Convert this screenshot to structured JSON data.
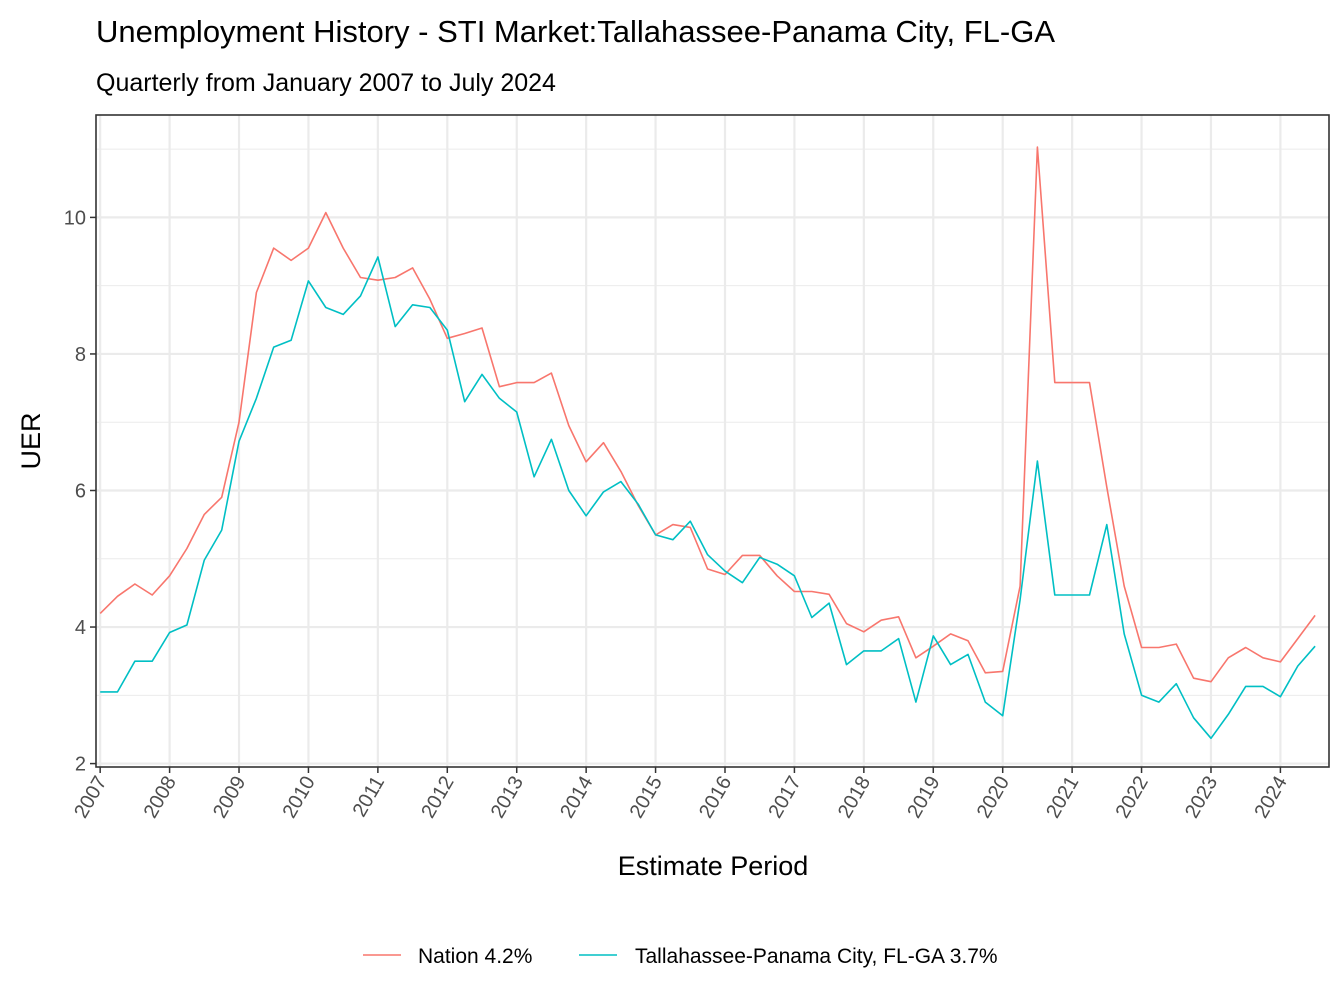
{
  "chart_data": {
    "type": "line",
    "title": "Unemployment History - STI Market:Tallahassee-Panama City, FL-GA",
    "subtitle": "Quarterly from January 2007 to July 2024",
    "xlabel": "Estimate Period",
    "ylabel": "UER",
    "xlim": [
      2006.94,
      2024.7
    ],
    "ylim": [
      1.95,
      11.5
    ],
    "y_ticks": [
      2,
      4,
      6,
      8,
      10
    ],
    "y_tick_labels": [
      "2",
      "4",
      "6",
      "8",
      "10"
    ],
    "x_ticks": [
      2007,
      2008,
      2009,
      2010,
      2011,
      2012,
      2013,
      2014,
      2015,
      2016,
      2017,
      2018,
      2019,
      2020,
      2021,
      2022,
      2023,
      2024
    ],
    "x_tick_labels": [
      "2007",
      "2008",
      "2009",
      "2010",
      "2011",
      "2012",
      "2013",
      "2014",
      "2015",
      "2016",
      "2017",
      "2018",
      "2019",
      "2020",
      "2021",
      "2022",
      "2023",
      "2024"
    ],
    "grid": true,
    "legend_position": "bottom",
    "x": [
      2007.0,
      2007.25,
      2007.5,
      2007.75,
      2008.0,
      2008.25,
      2008.5,
      2008.75,
      2009.0,
      2009.25,
      2009.5,
      2009.75,
      2010.0,
      2010.25,
      2010.5,
      2010.75,
      2011.0,
      2011.25,
      2011.5,
      2011.75,
      2012.0,
      2012.25,
      2012.5,
      2012.75,
      2013.0,
      2013.25,
      2013.5,
      2013.75,
      2014.0,
      2014.25,
      2014.5,
      2014.75,
      2015.0,
      2015.25,
      2015.5,
      2015.75,
      2016.0,
      2016.25,
      2016.5,
      2016.75,
      2017.0,
      2017.25,
      2017.5,
      2017.75,
      2018.0,
      2018.25,
      2018.5,
      2018.75,
      2019.0,
      2019.25,
      2019.5,
      2019.75,
      2020.0,
      2020.25,
      2020.5,
      2020.75,
      2021.0,
      2021.25,
      2021.5,
      2021.75,
      2022.0,
      2022.25,
      2022.5,
      2022.75,
      2023.0,
      2023.25,
      2023.5,
      2023.75,
      2024.0,
      2024.25,
      2024.5
    ],
    "series": [
      {
        "name": "Nation 4.2%",
        "color": "#F8766D",
        "values": [
          4.2,
          4.45,
          4.63,
          4.47,
          4.75,
          5.15,
          5.65,
          5.9,
          7.0,
          8.9,
          9.55,
          9.37,
          9.55,
          10.07,
          9.55,
          9.12,
          9.08,
          9.12,
          9.26,
          8.8,
          8.23,
          8.3,
          8.38,
          7.52,
          7.58,
          7.58,
          7.72,
          6.95,
          6.42,
          6.7,
          6.28,
          5.78,
          5.35,
          5.5,
          5.46,
          4.85,
          4.77,
          5.05,
          5.05,
          4.75,
          4.52,
          4.52,
          4.48,
          4.05,
          3.93,
          4.1,
          4.15,
          3.55,
          3.72,
          3.9,
          3.8,
          3.33,
          3.35,
          4.6,
          11.03,
          7.58,
          7.58,
          7.58,
          6.05,
          4.6,
          3.7,
          3.7,
          3.75,
          3.25,
          3.2,
          3.55,
          3.7,
          3.55,
          3.49,
          3.83,
          4.17
        ]
      },
      {
        "name": "Tallahassee-Panama City, FL-GA 3.7%",
        "color": "#00BFC4",
        "values": [
          3.05,
          3.05,
          3.5,
          3.5,
          3.92,
          4.03,
          4.98,
          5.42,
          6.72,
          7.35,
          8.1,
          8.2,
          9.07,
          8.68,
          8.58,
          8.85,
          9.42,
          8.4,
          8.72,
          8.68,
          8.35,
          7.3,
          7.7,
          7.35,
          7.15,
          6.2,
          6.75,
          6.0,
          5.63,
          5.98,
          6.13,
          5.8,
          5.35,
          5.28,
          5.55,
          5.06,
          4.82,
          4.65,
          5.02,
          4.92,
          4.75,
          4.14,
          4.35,
          3.45,
          3.65,
          3.65,
          3.83,
          2.9,
          3.87,
          3.45,
          3.6,
          2.9,
          2.7,
          4.4,
          6.43,
          4.47,
          4.47,
          4.47,
          5.5,
          3.9,
          3.0,
          2.9,
          3.17,
          2.67,
          2.37,
          2.72,
          3.13,
          3.13,
          2.98,
          3.43,
          3.72
        ]
      }
    ]
  }
}
